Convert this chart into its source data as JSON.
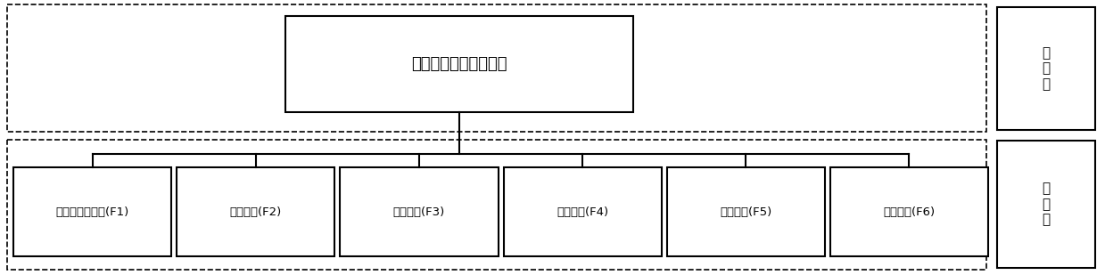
{
  "title_box_text": "生态地质环境类型划分",
  "label_top_right": "目\n标\n层",
  "label_bottom_right": "指\n标\n层",
  "indicators": [
    "植被归一化指数(F1)",
    "地表高程(F2)",
    "地形坡度(F3)",
    "地表岩性(F4)",
    "地貌类型(F5)",
    "水系河网(F6)"
  ],
  "bg_color": "#ffffff",
  "box_edge_color": "#000000",
  "dashed_color": "#000000",
  "font_size_title": 13,
  "font_size_indicators": 9.5,
  "font_size_labels": 11,
  "fig_w": 12.39,
  "fig_h": 3.09,
  "dpi": 100
}
